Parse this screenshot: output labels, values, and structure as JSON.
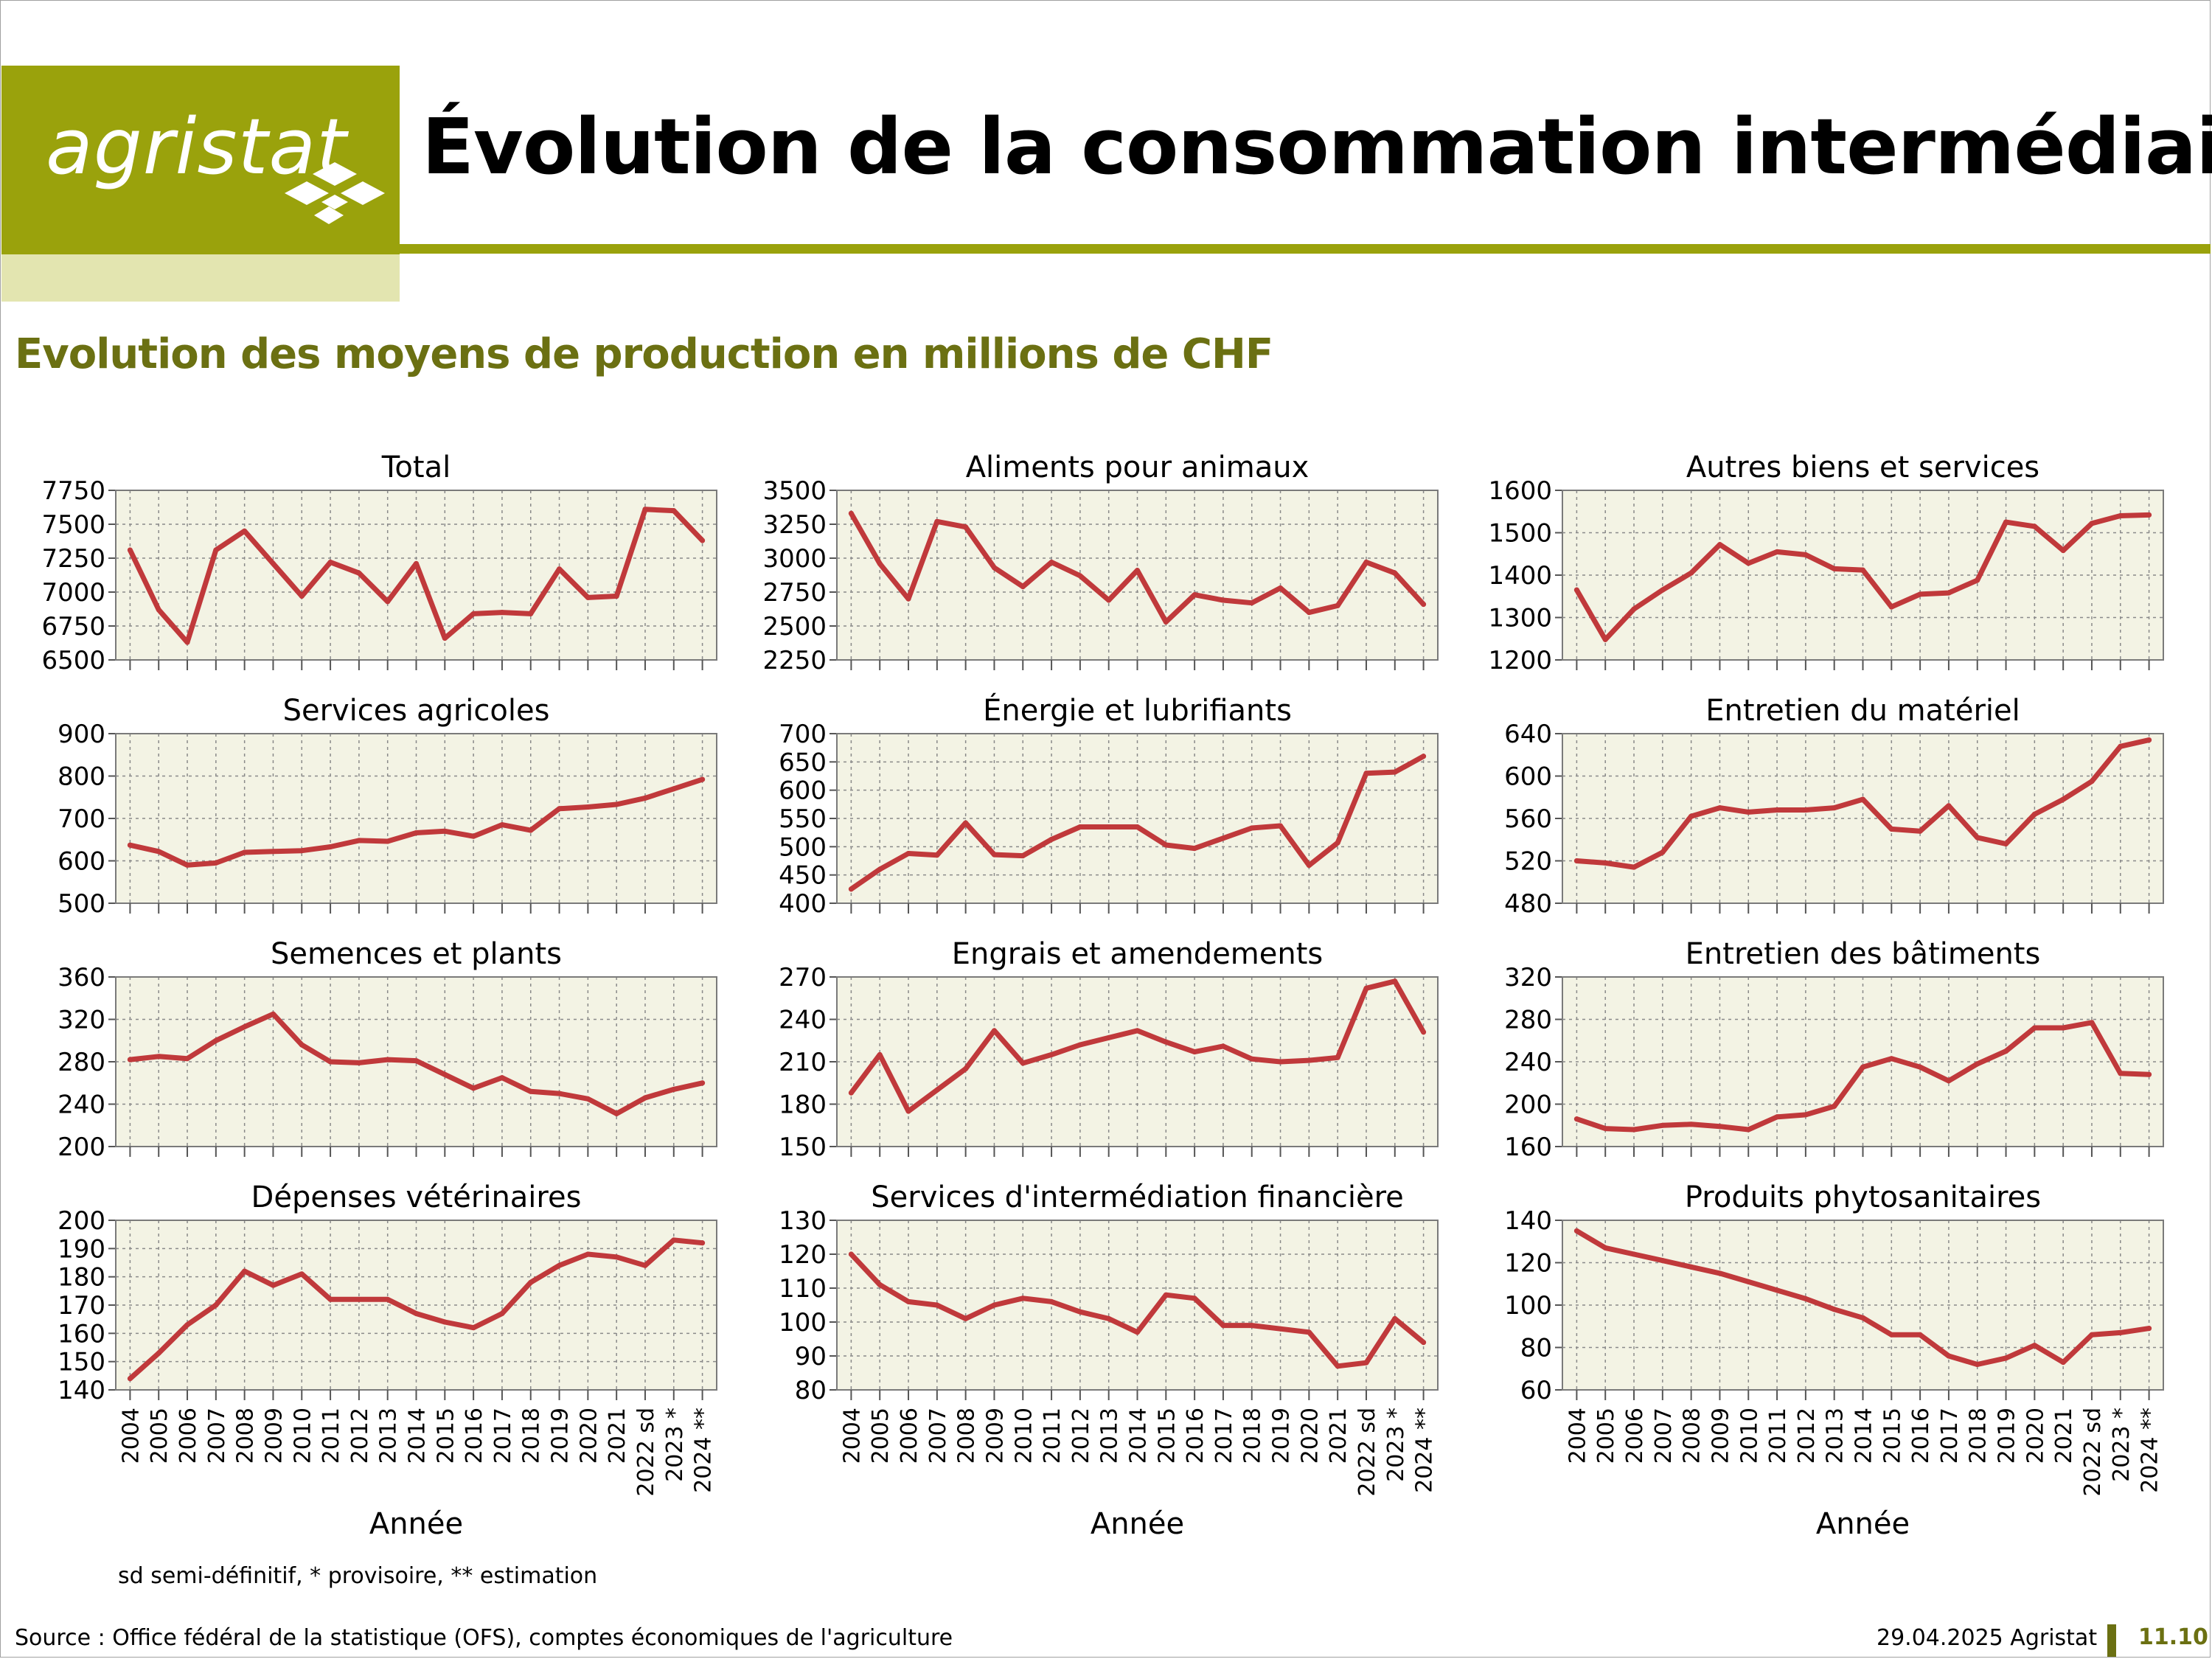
{
  "header": {
    "logo_text": "agristat",
    "title": "Évolution de la consommation intermédiaire",
    "brand_color": "#9aa20c"
  },
  "subtitle": "Evolution des moyens de production en millions de CHF",
  "footnote": "sd semi-définitif, * provisoire, ** estimation",
  "source": "Source : Office fédéral de la statistique (OFS), comptes économiques de l'agriculture",
  "date_org": "29.04.2025 Agristat",
  "page_number": "11.10",
  "chart_data": {
    "type": "line",
    "line_color": "#c0393b",
    "plot_background": "#f3f3e4",
    "grid": true,
    "x": [
      "2004",
      "2005",
      "2006",
      "2007",
      "2008",
      "2009",
      "2010",
      "2011",
      "2012",
      "2013",
      "2014",
      "2015",
      "2016",
      "2017",
      "2018",
      "2019",
      "2020",
      "2021",
      "2022 sd",
      "2023 *",
      "2024 **"
    ],
    "xlabel": "Année",
    "charts": [
      {
        "title": "Total",
        "ylim": [
          6500,
          7750
        ],
        "yticks": [
          6500,
          6750,
          7000,
          7250,
          7500,
          7750
        ],
        "values": [
          7310,
          6870,
          6630,
          7310,
          7450,
          7210,
          6970,
          7220,
          7140,
          6930,
          7210,
          6660,
          6840,
          6850,
          6840,
          7170,
          6960,
          6970,
          7610,
          7600,
          7380
        ]
      },
      {
        "title": "Aliments pour animaux",
        "ylim": [
          2250,
          3500
        ],
        "yticks": [
          2250,
          2500,
          2750,
          3000,
          3250,
          3500
        ],
        "values": [
          3330,
          2960,
          2700,
          3270,
          3230,
          2930,
          2790,
          2970,
          2870,
          2690,
          2910,
          2530,
          2730,
          2690,
          2670,
          2780,
          2600,
          2650,
          2970,
          2890,
          2660
        ]
      },
      {
        "title": "Autres biens et services",
        "ylim": [
          1200,
          1600
        ],
        "yticks": [
          1200,
          1300,
          1400,
          1500,
          1600
        ],
        "values": [
          1365,
          1248,
          1320,
          1365,
          1405,
          1472,
          1428,
          1455,
          1448,
          1415,
          1412,
          1325,
          1355,
          1358,
          1388,
          1525,
          1515,
          1458,
          1522,
          1540,
          1542
        ]
      },
      {
        "title": "Services agricoles",
        "ylim": [
          500,
          900
        ],
        "yticks": [
          500,
          600,
          700,
          800,
          900
        ],
        "values": [
          637,
          622,
          590,
          595,
          620,
          622,
          624,
          633,
          648,
          646,
          666,
          670,
          658,
          685,
          672,
          723,
          727,
          733,
          748,
          770,
          792
        ]
      },
      {
        "title": "Énergie et lubrifiants",
        "ylim": [
          400,
          700
        ],
        "yticks": [
          400,
          450,
          500,
          550,
          600,
          650,
          700
        ],
        "values": [
          425,
          460,
          488,
          485,
          542,
          486,
          484,
          513,
          535,
          535,
          535,
          503,
          497,
          515,
          533,
          537,
          467,
          507,
          630,
          632,
          660
        ]
      },
      {
        "title": "Entretien du matériel",
        "ylim": [
          480,
          640
        ],
        "yticks": [
          480,
          520,
          560,
          600,
          640
        ],
        "values": [
          520,
          518,
          514,
          528,
          562,
          570,
          566,
          568,
          568,
          570,
          578,
          550,
          548,
          572,
          542,
          536,
          564,
          578,
          595,
          628,
          634
        ]
      },
      {
        "title": "Semences et plants",
        "ylim": [
          200,
          360
        ],
        "yticks": [
          200,
          240,
          280,
          320,
          360
        ],
        "values": [
          282,
          285,
          283,
          300,
          313,
          325,
          296,
          280,
          279,
          282,
          281,
          268,
          255,
          265,
          252,
          250,
          245,
          231,
          246,
          254,
          260
        ]
      },
      {
        "title": "Engrais et amendements",
        "ylim": [
          150,
          270
        ],
        "yticks": [
          150,
          180,
          210,
          240,
          270
        ],
        "values": [
          188,
          215,
          175,
          190,
          205,
          232,
          209,
          215,
          222,
          227,
          232,
          224,
          217,
          221,
          212,
          210,
          211,
          213,
          262,
          267,
          231
        ]
      },
      {
        "title": "Entretien des bâtiments",
        "ylim": [
          160,
          320
        ],
        "yticks": [
          160,
          200,
          240,
          280,
          320
        ],
        "values": [
          186,
          177,
          176,
          180,
          181,
          179,
          176,
          188,
          190,
          198,
          235,
          243,
          235,
          222,
          238,
          250,
          272,
          272,
          277,
          229,
          228
        ]
      },
      {
        "title": "Dépenses vétérinaires",
        "ylim": [
          140,
          200
        ],
        "yticks": [
          140,
          150,
          160,
          170,
          180,
          190,
          200
        ],
        "values": [
          144,
          153,
          163,
          170,
          182,
          177,
          181,
          172,
          172,
          172,
          167,
          164,
          162,
          167,
          178,
          184,
          188,
          187,
          184,
          193,
          192
        ]
      },
      {
        "title": "Services d'intermédiation financière",
        "ylim": [
          80,
          130
        ],
        "yticks": [
          80,
          90,
          100,
          110,
          120,
          130
        ],
        "values": [
          120,
          111,
          106,
          105,
          101,
          105,
          107,
          106,
          103,
          101,
          97,
          108,
          107,
          99,
          99,
          98,
          97,
          87,
          88,
          101,
          94
        ]
      },
      {
        "title": "Produits phytosanitaires",
        "ylim": [
          60,
          140
        ],
        "yticks": [
          60,
          80,
          100,
          120,
          140
        ],
        "values": [
          135,
          127,
          124,
          121,
          118,
          115,
          111,
          107,
          103,
          98,
          94,
          86,
          86,
          76,
          72,
          75,
          81,
          73,
          86,
          87,
          89
        ]
      }
    ]
  }
}
